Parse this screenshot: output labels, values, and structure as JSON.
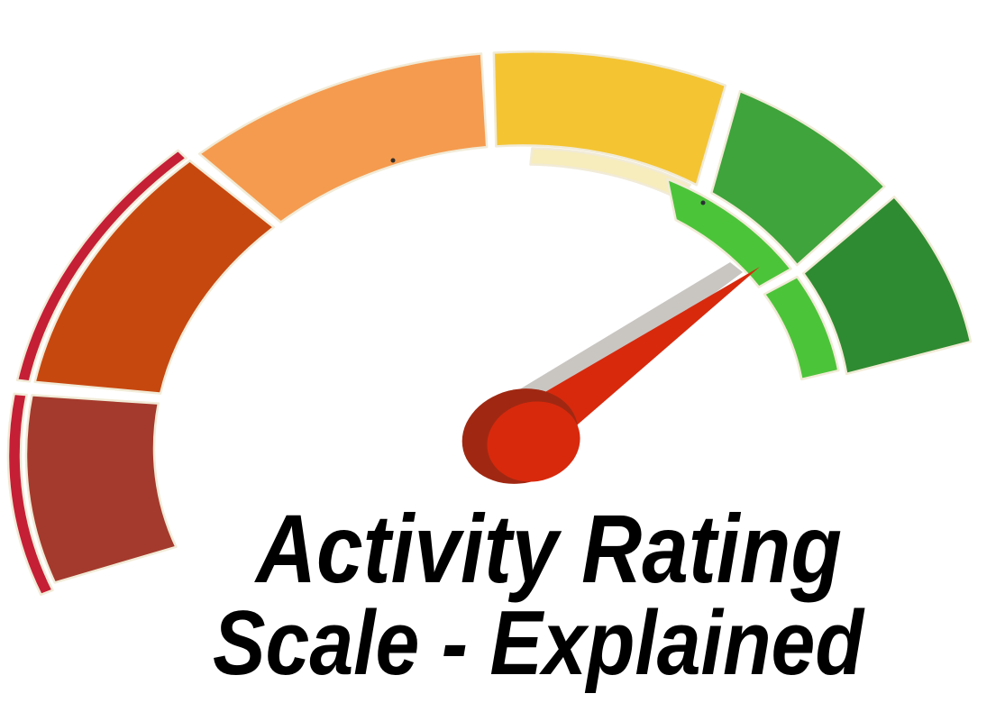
{
  "page": {
    "background": "#FFFFFF"
  },
  "caption": {
    "line1": "Activity Rating",
    "line2": "Scale - Explained",
    "color": "#000000"
  },
  "gauge": {
    "stroke_color": "#F1EBD7",
    "needle": {
      "pointer_color": "#D8290D",
      "shadow_color": "#C9C6C2",
      "hub_base_color": "#A02812",
      "hub_highlight_color": "#D8290D"
    }
  },
  "chart_data": {
    "type": "gauge",
    "title": "Activity Rating Scale - Explained",
    "description": "Speedometer-style rating dial sweeping clockwise from dark red (lowest) through orange and yellow to dark green (highest); the needle points up-right into the green zone.",
    "arc_span_parametric_deg": {
      "start": 200,
      "end": 9
    },
    "needle_angle_deg": 35,
    "needle_points_to": "high",
    "legend_position": "none",
    "grid": false,
    "segments": [
      {
        "label": "lowest",
        "color": "#A43A2D",
        "outer": [
          200,
          171
        ],
        "inner": [
          200.5,
          171
        ]
      },
      {
        "label": "low",
        "color": "#C7480F",
        "outer": [
          169,
          131
        ],
        "inner": [
          169,
          131
        ]
      },
      {
        "label": "medium-low",
        "color": "#F59B4F",
        "outer": [
          129.5,
          92.5
        ],
        "inner": [
          129.5,
          92.5
        ]
      },
      {
        "label": "medium",
        "color": "#F4C433",
        "outer": [
          91,
          62
        ],
        "inner": [
          91,
          56
        ]
      },
      {
        "label": "high",
        "color": "#3EA43B",
        "outer": [
          60,
          36.5
        ],
        "inner": [
          53,
          32
        ]
      },
      {
        "label": "highest",
        "color": "#2F8B31",
        "outer": [
          34.5,
          10
        ],
        "inner": [
          30,
          8
        ]
      }
    ],
    "accents": [
      {
        "label": "outer-crimson-band-lower",
        "color": "#C51F36",
        "band": "outside",
        "outer": [
          201,
          171
        ],
        "inner": [
          201,
          171
        ]
      },
      {
        "label": "outer-crimson-band-upper",
        "color": "#C51F36",
        "band": "outside",
        "outer": [
          169,
          131
        ],
        "inner": [
          169,
          131
        ]
      },
      {
        "label": "inner-cream-band-yellow",
        "color": "#F7ECBC",
        "band": "inside-thin",
        "outer": [
          85,
          57
        ],
        "inner": [
          85,
          57
        ]
      },
      {
        "label": "inner-light-green-band-a",
        "color": "#4CC43A",
        "band": "inside",
        "outer": [
          61,
          32
        ],
        "inner": [
          55,
          32
        ]
      },
      {
        "label": "inner-light-green-band-b",
        "color": "#4CC43A",
        "band": "inside",
        "outer": [
          30,
          9
        ],
        "inner": [
          30,
          8.5
        ]
      }
    ]
  }
}
